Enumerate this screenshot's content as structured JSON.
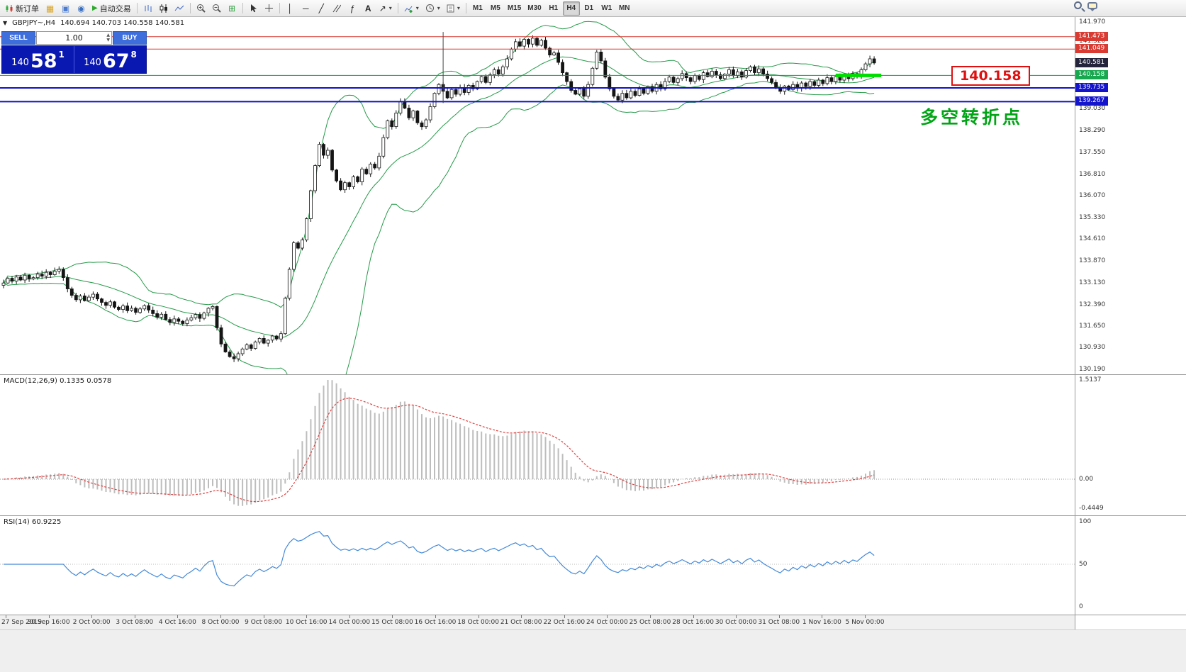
{
  "toolbar": {
    "new_order_label": "新订单",
    "auto_trading_label": "自动交易",
    "timeframes": [
      "M1",
      "M5",
      "M15",
      "M30",
      "H1",
      "H4",
      "D1",
      "W1",
      "MN"
    ],
    "active_timeframe": "H4",
    "text_tool_label": "A"
  },
  "chart_header": {
    "symbol_period": "GBPJPY~,H4",
    "ohlc": "140.694 140.703 140.558 140.581"
  },
  "trade_panel": {
    "sell_label": "SELL",
    "buy_label": "BUY",
    "volume": "1.00",
    "sell_price_small": "140",
    "sell_price_big": "58",
    "sell_price_sup": "1",
    "buy_price_small": "140",
    "buy_price_big": "67",
    "buy_price_sup": "8"
  },
  "annotations": {
    "price_callout": "140.158",
    "cn_note": "多空转折点"
  },
  "price_axis": {
    "plain_labels": [
      "141.970",
      "141.320",
      "139.030",
      "138.290",
      "137.550",
      "136.810",
      "136.070",
      "135.330",
      "134.610",
      "133.870",
      "133.130",
      "132.390",
      "131.650",
      "130.930",
      "130.190"
    ],
    "tags": [
      {
        "value": "141.473",
        "color": "#d93b32"
      },
      {
        "value": "141.049",
        "color": "#d93b32"
      },
      {
        "value": "140.581",
        "color": "#24243c"
      },
      {
        "value": "140.158",
        "color": "#18a850"
      },
      {
        "value": "139.735",
        "color": "#1414cc"
      },
      {
        "value": "139.267",
        "color": "#1414cc"
      }
    ]
  },
  "indicators": {
    "macd_label": "MACD(12,26,9) 0.1335 0.0578",
    "macd_axis": [
      "1.5137",
      "0.00",
      "-0.4449"
    ],
    "rsi_label": "RSI(14) 60.9225",
    "rsi_axis": [
      "100",
      "50",
      "0"
    ]
  },
  "time_axis": [
    "27 Sep 2019",
    "30 Sep 16:00",
    "2 Oct 00:00",
    "3 Oct 08:00",
    "4 Oct 16:00",
    "8 Oct 00:00",
    "9 Oct 08:00",
    "10 Oct 16:00",
    "14 Oct 00:00",
    "15 Oct 08:00",
    "16 Oct 16:00",
    "18 Oct 00:00",
    "21 Oct 08:00",
    "22 Oct 16:00",
    "24 Oct 00:00",
    "25 Oct 08:00",
    "28 Oct 16:00",
    "30 Oct 00:00",
    "31 Oct 08:00",
    "1 Nov 16:00",
    "5 Nov 00:00"
  ],
  "colors": {
    "bands": "#249a48",
    "candle": "#151515",
    "bull_fill": "#ffffff",
    "macd_hist": "#bdbdbd",
    "macd_signal": "#e04040",
    "rsi_line": "#4489d8",
    "callout_red": "#e01010",
    "note_green": "#00a415",
    "buy_sell_button": "#3d6edc",
    "price_panel_bg": "#0a18b2"
  },
  "chart_data": {
    "type": "candlestick",
    "symbol": "GBPJPY",
    "period": "H4",
    "price_range": [
      130.19,
      141.97
    ],
    "closes": [
      133.12,
      133.28,
      133.18,
      133.32,
      133.22,
      133.38,
      133.26,
      133.3,
      133.42,
      133.35,
      133.48,
      133.4,
      133.52,
      133.58,
      133.3,
      132.92,
      132.7,
      132.55,
      132.68,
      132.52,
      132.64,
      132.74,
      132.58,
      132.46,
      132.36,
      132.48,
      132.3,
      132.22,
      132.34,
      132.18,
      132.26,
      132.12,
      132.24,
      132.35,
      132.2,
      132.08,
      131.96,
      132.06,
      131.88,
      131.78,
      131.9,
      131.82,
      131.74,
      131.86,
      131.94,
      132.05,
      131.92,
      132.1,
      132.26,
      132.32,
      131.6,
      131.05,
      130.78,
      130.62,
      130.55,
      130.72,
      130.88,
      131.02,
      130.9,
      131.12,
      131.24,
      131.08,
      131.18,
      131.32,
      131.22,
      131.4,
      132.6,
      133.58,
      134.48,
      134.3,
      134.58,
      135.3,
      136.25,
      137.1,
      137.82,
      137.45,
      137.62,
      136.95,
      136.58,
      136.28,
      136.52,
      136.38,
      136.72,
      136.55,
      136.98,
      136.82,
      137.15,
      137.02,
      137.42,
      138.05,
      138.62,
      138.42,
      138.88,
      139.28,
      139.05,
      138.72,
      138.95,
      138.55,
      138.42,
      138.65,
      139.1,
      139.55,
      139.85,
      139.62,
      139.4,
      139.68,
      139.52,
      139.75,
      139.58,
      139.82,
      139.7,
      139.95,
      140.12,
      139.92,
      140.18,
      140.35,
      140.2,
      140.45,
      140.72,
      141.05,
      141.3,
      141.15,
      141.38,
      141.22,
      141.42,
      141.18,
      141.35,
      141.08,
      140.85,
      140.92,
      140.6,
      140.25,
      139.95,
      139.65,
      139.52,
      139.7,
      139.45,
      139.85,
      140.4,
      140.95,
      140.65,
      140.1,
      139.7,
      139.45,
      139.32,
      139.55,
      139.4,
      139.62,
      139.48,
      139.7,
      139.55,
      139.78,
      139.62,
      139.85,
      139.7,
      139.95,
      140.1,
      139.92,
      140.05,
      140.22,
      140.08,
      139.95,
      140.15,
      140.02,
      140.25,
      140.12,
      140.3,
      140.18,
      140.05,
      140.2,
      140.35,
      140.15,
      140.28,
      140.1,
      140.32,
      140.45,
      140.25,
      140.38,
      140.2,
      140.05,
      139.92,
      139.75,
      139.62,
      139.8,
      139.68,
      139.85,
      139.72,
      139.9,
      139.78,
      139.95,
      139.82,
      140.0,
      139.88,
      140.08,
      139.95,
      140.12,
      140.0,
      140.18,
      140.05,
      140.22,
      140.15,
      140.35,
      140.55,
      140.72,
      140.581
    ],
    "hlines": [
      {
        "price": 141.473,
        "color": "#d93b32",
        "width": 1
      },
      {
        "price": 141.049,
        "color": "#d93b32",
        "width": 1
      },
      {
        "price": 140.158,
        "color": "#0aa050",
        "width": 1
      },
      {
        "price": 139.735,
        "color": "#1010c8",
        "width": 2
      },
      {
        "price": 139.267,
        "color": "#1010c8",
        "width": 2
      }
    ],
    "green_segment": {
      "from_index": 195,
      "to_index": 204,
      "price": 140.158,
      "color": "#00dd00",
      "width": 5
    },
    "vline": {
      "index": 103,
      "from": 141.63,
      "to": 139.22,
      "color": "#444444"
    },
    "bollinger": {
      "period": 20,
      "deviation": 2
    },
    "macd": {
      "fast": 12,
      "slow": 26,
      "signal": 9,
      "display_max": 1.5137,
      "display_min": -0.4449
    },
    "rsi": {
      "period": 14,
      "current": 60.9225
    }
  }
}
